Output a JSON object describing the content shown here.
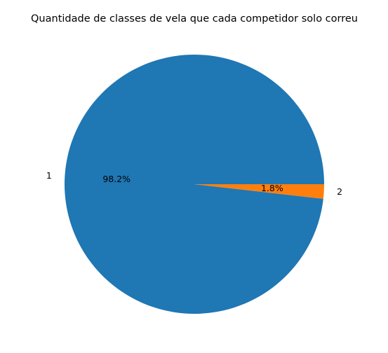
{
  "chart_data": {
    "type": "pie",
    "title": "Quantidade de classes de vela que cada competidor solo correu",
    "categories": [
      "1",
      "2"
    ],
    "values": [
      98.2,
      1.8
    ],
    "percent_labels": [
      "98.2%",
      "1.8%"
    ],
    "colors": [
      "#1f77b4",
      "#ff7f0e"
    ],
    "start_angle_deg": 0,
    "direction": "counterclockwise",
    "legend": "none"
  }
}
